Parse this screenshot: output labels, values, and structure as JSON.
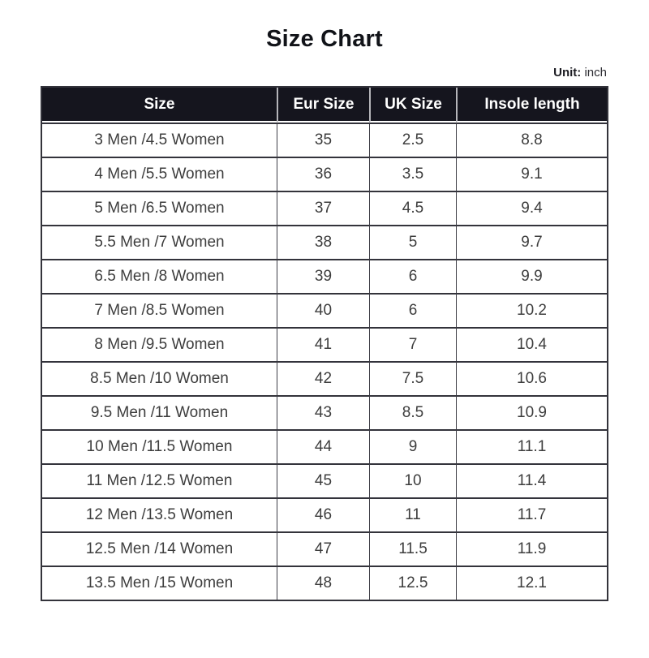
{
  "page": {
    "title": "Size Chart",
    "unit_label": "Unit:",
    "unit_value": "inch"
  },
  "colors": {
    "header_bg": "#15151e",
    "header_text": "#ffffff",
    "body_text": "#3d3d3d",
    "border_dark": "#33333b",
    "title_text": "#111318"
  },
  "chart_data": {
    "type": "table",
    "title": "Size Chart",
    "unit": "inch",
    "columns": [
      "Size",
      "Eur Size",
      "UK Size",
      "Insole length"
    ],
    "rows": [
      [
        "3 Men /4.5 Women",
        "35",
        "2.5",
        "8.8"
      ],
      [
        "4 Men /5.5 Women",
        "36",
        "3.5",
        "9.1"
      ],
      [
        "5 Men /6.5 Women",
        "37",
        "4.5",
        "9.4"
      ],
      [
        "5.5 Men /7 Women",
        "38",
        "5",
        "9.7"
      ],
      [
        "6.5 Men /8 Women",
        "39",
        "6",
        "9.9"
      ],
      [
        "7 Men /8.5 Women",
        "40",
        "6",
        "10.2"
      ],
      [
        "8 Men /9.5 Women",
        "41",
        "7",
        "10.4"
      ],
      [
        "8.5 Men /10 Women",
        "42",
        "7.5",
        "10.6"
      ],
      [
        "9.5 Men /11 Women",
        "43",
        "8.5",
        "10.9"
      ],
      [
        "10 Men /11.5 Women",
        "44",
        "9",
        "11.1"
      ],
      [
        "11 Men /12.5 Women",
        "45",
        "10",
        "11.4"
      ],
      [
        "12 Men /13.5 Women",
        "46",
        "11",
        "11.7"
      ],
      [
        "12.5 Men /14 Women",
        "47",
        "11.5",
        "11.9"
      ],
      [
        "13.5 Men /15 Women",
        "48",
        "12.5",
        "12.1"
      ]
    ]
  }
}
